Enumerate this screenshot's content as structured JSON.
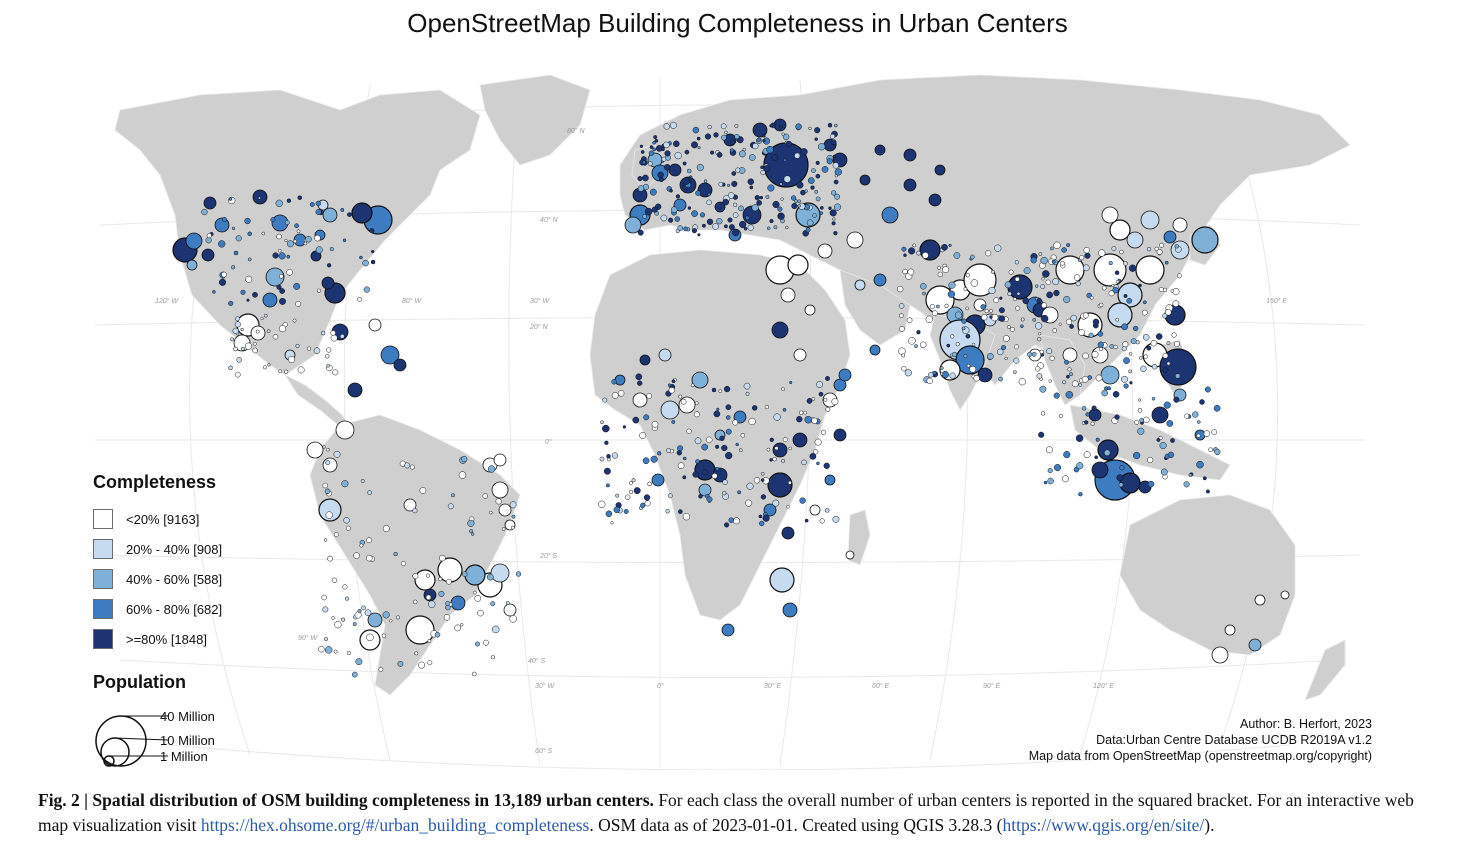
{
  "title": "OpenStreetMap Building Completeness in Urban Centers",
  "colors": {
    "land": "#cfcfcf",
    "ocean": "#ffffff",
    "graticule": "#e6e6e6",
    "class_lt20": "#ffffff",
    "class_20_40": "#c6dbef",
    "class_40_60": "#7fb0d8",
    "class_60_80": "#3e7cc1",
    "class_ge80": "#1c3471"
  },
  "map": {
    "graticule_labels": {
      "lat": [
        "80° N",
        "40° N",
        "20° N",
        "0°",
        "20° S",
        "40° S",
        "60° S"
      ],
      "lon": [
        "120° W",
        "80° W",
        "30° W",
        "150° E",
        "90° W",
        "30° W",
        "0°",
        "30° E",
        "60° E",
        "90° E",
        "120° E"
      ]
    }
  },
  "legend": {
    "completeness_title": "Completeness",
    "classes": [
      {
        "label": "<20% [9163]",
        "color": "#ffffff"
      },
      {
        "label": "20% - 40% [908]",
        "color": "#c6dbef"
      },
      {
        "label": "40% - 60% [588]",
        "color": "#7fb0d8"
      },
      {
        "label": "60% - 80% [682]",
        "color": "#3e7cc1"
      },
      {
        "label": ">=80% [1848]",
        "color": "#1c3471"
      }
    ],
    "population_title": "Population",
    "population_sizes": [
      "40 Million",
      "10 Million",
      "1 Million"
    ]
  },
  "credits": {
    "author": "Author: B. Herfort, 2023",
    "data": "Data:Urban Centre Database UCDB R2019A v1.2",
    "map_data": "Map data from OpenStreetMap (openstreetmap.org/copyright)"
  },
  "caption": {
    "bold": "Fig. 2 | Spatial distribution of OSM building completeness in 13,189 urban centers.",
    "text1": " For each class the overall number of urban centers is reported in the squared bracket. For an interactive web map visualization visit ",
    "link1": "https://hex.ohsome.org/#/urban_building_completeness",
    "text2": ". OSM data as of 2023-01-01. Created using QGIS 3.28.3 (",
    "link2": "https://www.qgis.org/en/site/",
    "text3": ")."
  }
}
